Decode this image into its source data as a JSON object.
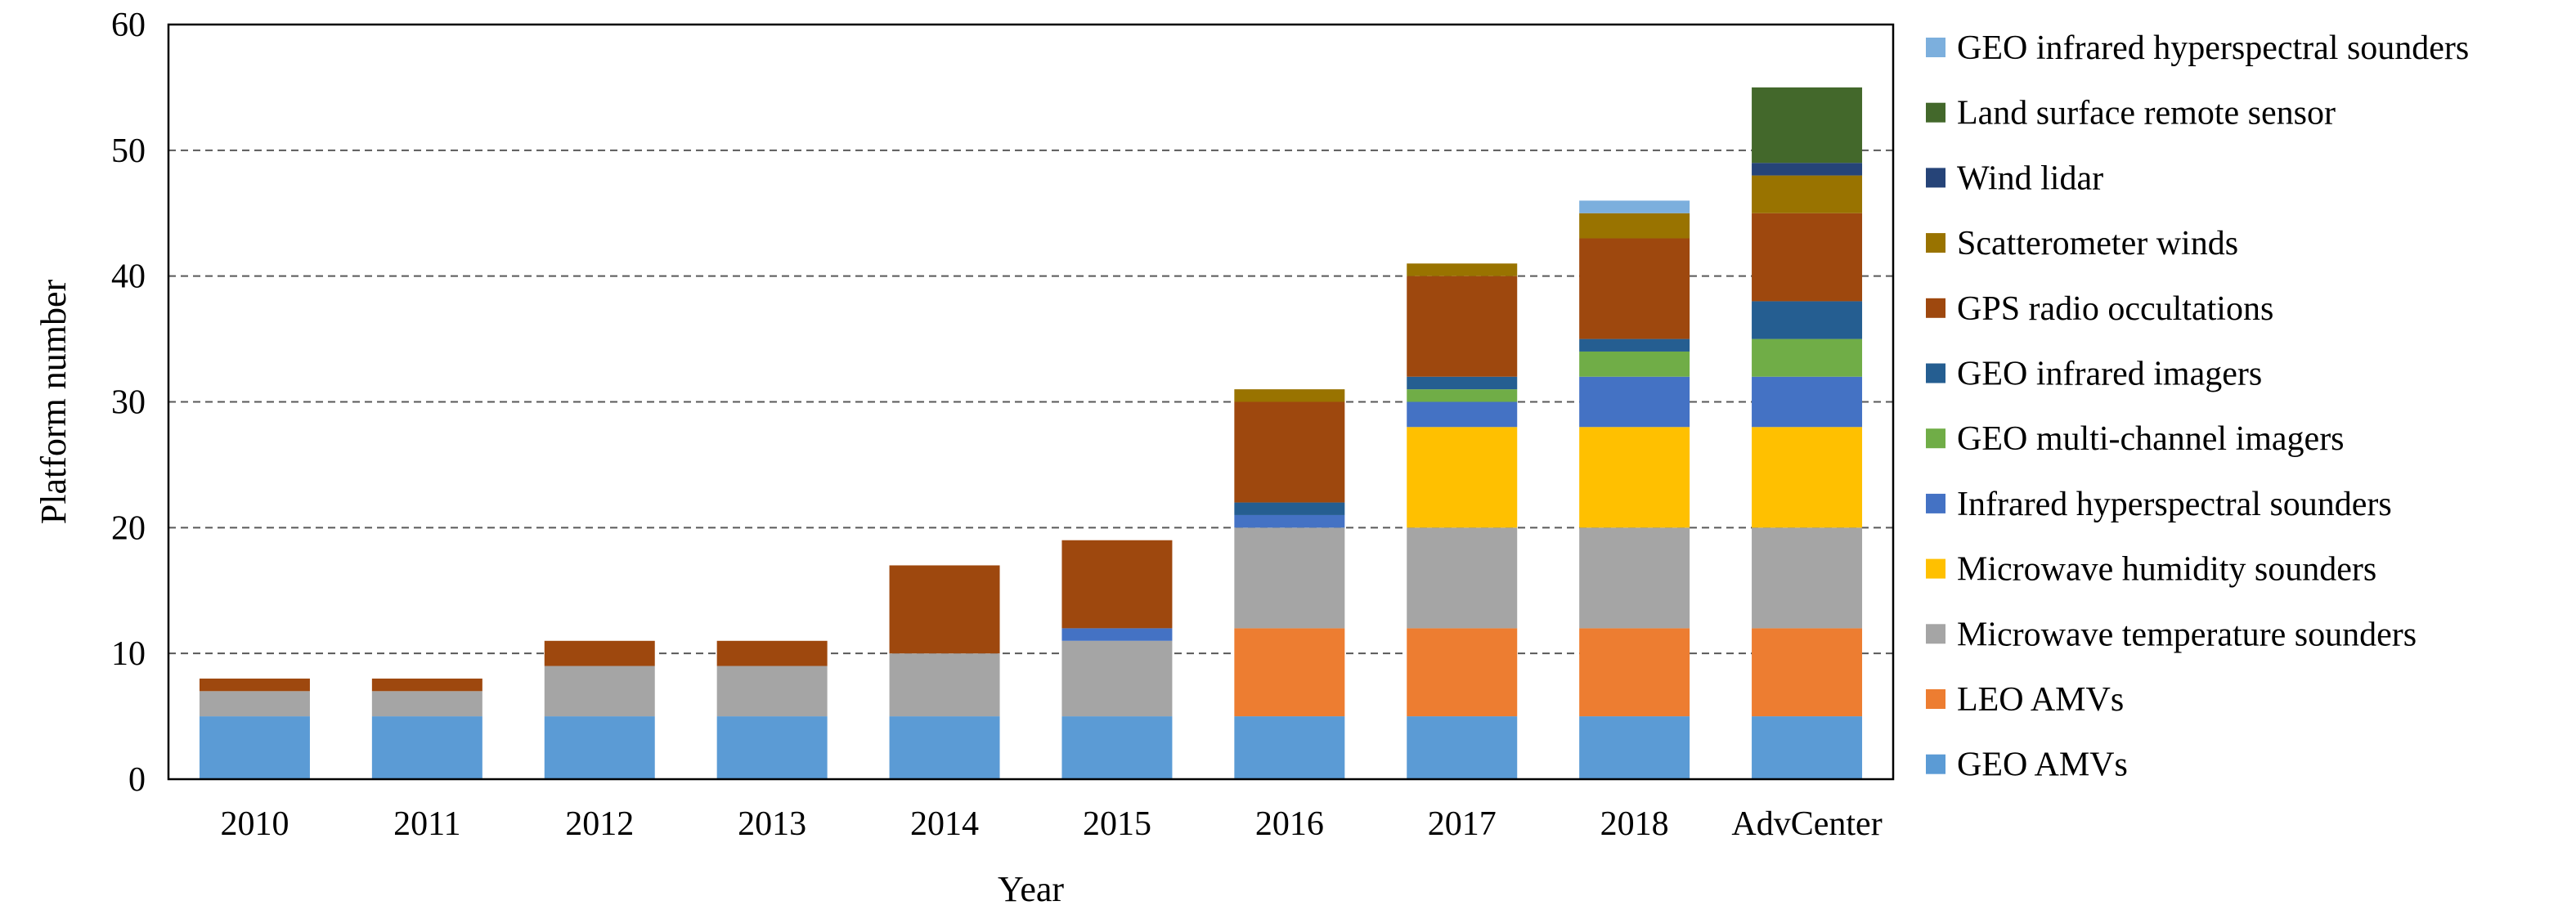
{
  "chart_data": {
    "type": "bar",
    "stacked": true,
    "title": "",
    "xlabel": "Year",
    "ylabel": "Platform number",
    "ylim": [
      0,
      60
    ],
    "yticks": [
      0,
      10,
      20,
      30,
      40,
      50,
      60
    ],
    "grid": "horizontal dashed",
    "legend_position": "right",
    "categories": [
      "2010",
      "2011",
      "2012",
      "2013",
      "2014",
      "2015",
      "2016",
      "2017",
      "2018",
      "AdvCenter"
    ],
    "series": [
      {
        "name": "GEO AMVs",
        "color": "#5B9BD5",
        "values": [
          5,
          5,
          5,
          5,
          5,
          5,
          5,
          5,
          5,
          5
        ]
      },
      {
        "name": "LEO AMVs",
        "color": "#ED7D31",
        "values": [
          0,
          0,
          0,
          0,
          0,
          0,
          7,
          7,
          7,
          7
        ]
      },
      {
        "name": "Microwave temperature sounders",
        "color": "#A5A5A5",
        "values": [
          2,
          2,
          4,
          4,
          5,
          6,
          8,
          8,
          8,
          8
        ]
      },
      {
        "name": "Microwave humidity sounders",
        "color": "#FFC000",
        "values": [
          0,
          0,
          0,
          0,
          0,
          0,
          0,
          8,
          8,
          8
        ]
      },
      {
        "name": "Infrared hyperspectral sounders",
        "color": "#4472C4",
        "values": [
          0,
          0,
          0,
          0,
          0,
          1,
          1,
          2,
          4,
          4
        ]
      },
      {
        "name": "GEO multi-channel imagers",
        "color": "#70AD47",
        "values": [
          0,
          0,
          0,
          0,
          0,
          0,
          0,
          1,
          2,
          3
        ]
      },
      {
        "name": "GEO infrared imagers",
        "color": "#255E91",
        "values": [
          0,
          0,
          0,
          0,
          0,
          0,
          1,
          1,
          1,
          3
        ]
      },
      {
        "name": "GPS radio occultations",
        "color": "#9E480E",
        "values": [
          1,
          1,
          2,
          2,
          7,
          7,
          8,
          8,
          8,
          7
        ]
      },
      {
        "name": "Scatterometer winds",
        "color": "#997300",
        "values": [
          0,
          0,
          0,
          0,
          0,
          0,
          1,
          1,
          2,
          3
        ]
      },
      {
        "name": "Wind lidar",
        "color": "#264478",
        "values": [
          0,
          0,
          0,
          0,
          0,
          0,
          0,
          0,
          0,
          1
        ]
      },
      {
        "name": "Land surface remote sensor",
        "color": "#43682B",
        "values": [
          0,
          0,
          0,
          0,
          0,
          0,
          0,
          0,
          0,
          6
        ]
      },
      {
        "name": "GEO infrared hyperspectral sounders",
        "color": "#7CAFDD",
        "values": [
          0,
          0,
          0,
          0,
          0,
          0,
          0,
          0,
          1,
          0
        ]
      }
    ]
  }
}
